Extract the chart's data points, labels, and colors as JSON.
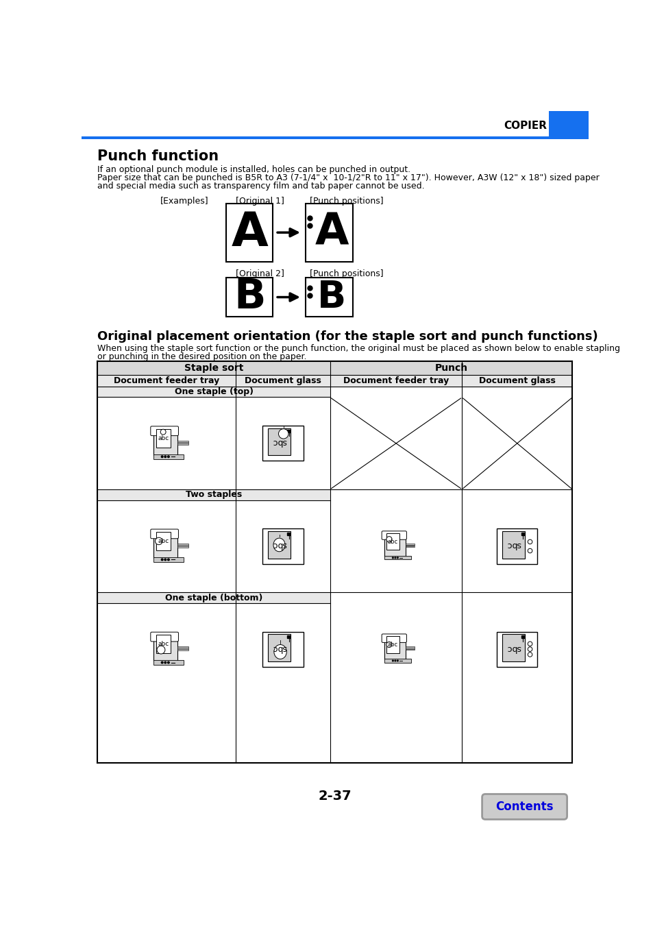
{
  "title_copier": "COPIER",
  "header_bar_color": "#1570ef",
  "punch_function_title": "Punch function",
  "punch_function_body1": "If an optional punch module is installed, holes can be punched in output.",
  "punch_function_body2": "Paper size that can be punched is B5R to A3 (7-1/4\" x  10-1/2\"R to 11\" x 17\"). However, A3W (12\" x 18\") sized paper",
  "punch_function_body3": "and special media such as transparency film and tab paper cannot be used.",
  "examples_label": "[Examples]",
  "original1_label": "[Original 1]",
  "punch_positions_label1": "[Punch positions]",
  "original2_label": "[Original 2]",
  "punch_positions_label2": "[Punch positions]",
  "orientation_title": "Original placement orientation (for the staple sort and punch functions)",
  "orientation_body1": "When using the staple sort function or the punch function, the original must be placed as shown below to enable stapling",
  "orientation_body2": "or punching in the desired position on the paper.",
  "staple_sort_header": "Staple sort",
  "punch_header": "Punch",
  "doc_feeder_tray": "Document feeder tray",
  "doc_glass": "Document glass",
  "one_staple_top": "One staple (top)",
  "two_staples": "Two staples",
  "one_staple_bottom": "One staple (bottom)",
  "page_number": "2-37",
  "contents_label": "Contents",
  "contents_color": "#0000dd",
  "background_color": "#ffffff",
  "text_color": "#000000",
  "header_bg": "#d8d8d8",
  "subheader_bg": "#e8e8e8"
}
